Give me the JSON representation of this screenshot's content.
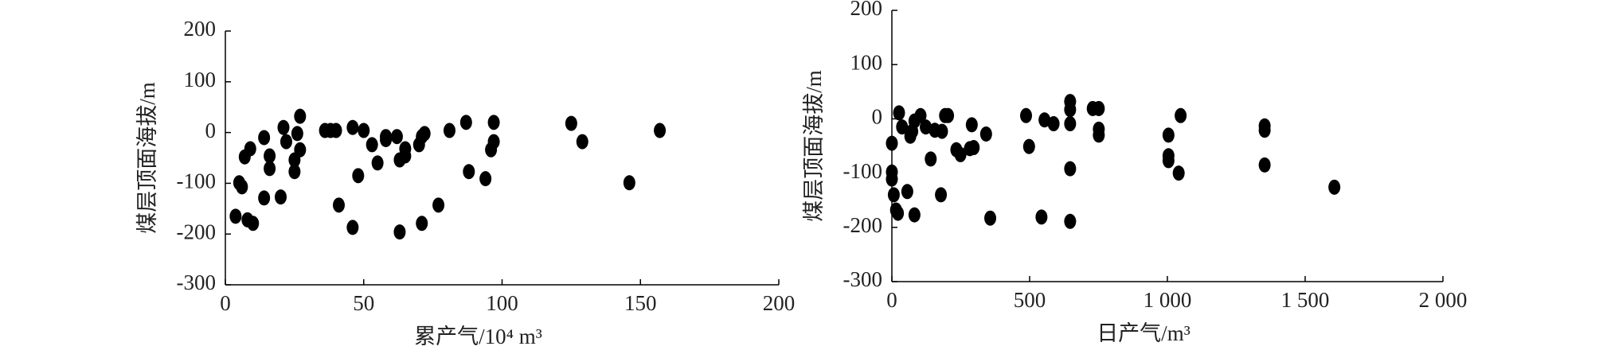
{
  "chart_data": [
    {
      "type": "scatter",
      "x_label": "累产气/10⁴ m³",
      "y_label": "煤层顶面海拔/m",
      "color": "#000000",
      "xlim": [
        0,
        200
      ],
      "xticks": [
        0,
        50,
        100,
        150,
        200
      ],
      "ylim": [
        -300,
        200
      ],
      "yticks": [
        -300,
        -200,
        -100,
        0,
        100,
        200
      ],
      "x": [
        3.7,
        5,
        6,
        7,
        8,
        9,
        10,
        14,
        14,
        16,
        16,
        20,
        21,
        22,
        25,
        25,
        26,
        27,
        27,
        36,
        38,
        40,
        41,
        46,
        46,
        48,
        50,
        53,
        55,
        58,
        58,
        62,
        63,
        63,
        65,
        65,
        70,
        71,
        71,
        72,
        77,
        81,
        87,
        88,
        94,
        96,
        97,
        97,
        125,
        129,
        146,
        157
      ],
      "values": [
        -165,
        -99,
        -107,
        -48,
        -172,
        -32,
        -179,
        -10,
        -129,
        -46,
        -71,
        -127,
        10,
        -18,
        -54,
        -77,
        -2,
        -34,
        32,
        4,
        4,
        4,
        -143,
        -187,
        10,
        -85,
        4,
        -24,
        -60,
        -14,
        -8,
        -8,
        -196,
        -54,
        -46,
        -32,
        -24,
        -8,
        -179,
        -2,
        -143,
        4,
        20,
        -77,
        -91,
        -34,
        20,
        -18,
        18,
        -18,
        -99,
        4
      ]
    },
    {
      "type": "scatter",
      "x_label": "日产气/m³",
      "y_label": "煤层顶面海拔/m",
      "color": "#000000",
      "xlim": [
        0,
        2000
      ],
      "xticks": [
        0,
        {
          "value": 500,
          "label": "500"
        },
        {
          "value": 1000,
          "label": "1 000"
        },
        {
          "value": 1500,
          "label": "1 500"
        },
        {
          "value": 2000,
          "label": "2 000"
        }
      ],
      "ylim": [
        -300,
        200
      ],
      "yticks": [
        -300,
        -200,
        -100,
        0,
        100,
        200
      ],
      "x": [
        0,
        0,
        0,
        7,
        15,
        22,
        26,
        37,
        56,
        67,
        74,
        82,
        82,
        104,
        123,
        141,
        156,
        178,
        182,
        193,
        204,
        234,
        249,
        283,
        297,
        290,
        342,
        357,
        487,
        498,
        543,
        554,
        587,
        647,
        647,
        647,
        647,
        647,
        729,
        751,
        751,
        751,
        1004,
        1004,
        1004,
        1041,
        1048,
        1353,
        1353,
        1353,
        1606
      ],
      "values": [
        -45,
        -98,
        -111,
        -140,
        -168,
        -174,
        11,
        -15,
        -134,
        -32,
        -23,
        -4,
        -177,
        6,
        -15,
        -74,
        -21,
        -140,
        -23,
        6,
        6,
        -57,
        -66,
        -55,
        -53,
        -11,
        -28,
        -183,
        6,
        -51,
        -181,
        -2,
        -9,
        32,
        17,
        -9,
        -92,
        -189,
        19,
        19,
        -19,
        -30,
        -30,
        -68,
        -77,
        -100,
        6,
        -13,
        -21,
        -85,
        -126
      ]
    }
  ]
}
